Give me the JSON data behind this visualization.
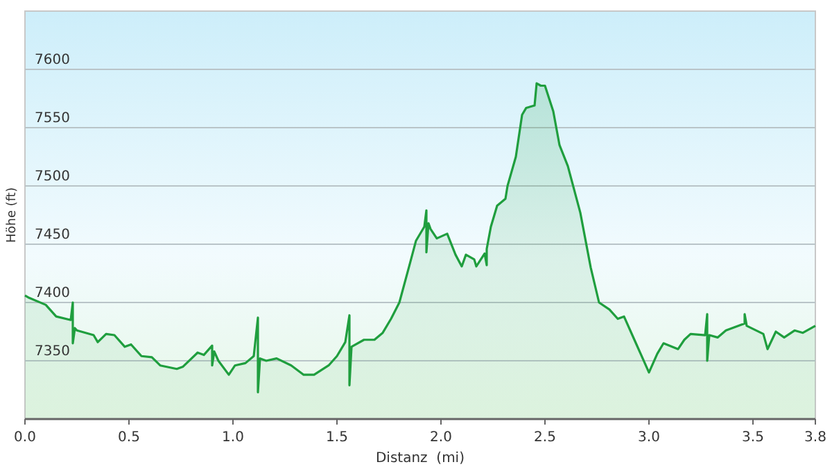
{
  "chart_data": {
    "type": "area",
    "xlabel": "Distanz  (mi)",
    "ylabel": "Höhe (ft)",
    "xlim": [
      0,
      3.8
    ],
    "ylim": [
      7300,
      7650
    ],
    "xticks": [
      {
        "value": 0,
        "label": "0.0"
      },
      {
        "value": 0.5,
        "label": "0.5"
      },
      {
        "value": 1,
        "label": "1.0"
      },
      {
        "value": 1.5,
        "label": "1.5"
      },
      {
        "value": 2,
        "label": "2.0"
      },
      {
        "value": 2.5,
        "label": "2.5"
      },
      {
        "value": 3,
        "label": "3.0"
      },
      {
        "value": 3.5,
        "label": "3.5"
      },
      {
        "value": 3.8,
        "label": "3.8"
      }
    ],
    "yticks": [
      7350,
      7400,
      7450,
      7500,
      7550,
      7600
    ],
    "grid": "y",
    "marker": "none",
    "line_style": "solid",
    "series": [
      {
        "color": "#1f9e3e",
        "x": [
          0,
          0.02,
          0.1,
          0.15,
          0.22,
          0.23,
          0.23,
          0.24,
          0.25,
          0.33,
          0.35,
          0.39,
          0.43,
          0.48,
          0.51,
          0.56,
          0.61,
          0.65,
          0.73,
          0.76,
          0.83,
          0.86,
          0.9,
          0.9,
          0.91,
          0.93,
          0.98,
          1.01,
          1.06,
          1.1,
          1.12,
          1.12,
          1.13,
          1.16,
          1.21,
          1.28,
          1.34,
          1.39,
          1.46,
          1.5,
          1.54,
          1.56,
          1.56,
          1.57,
          1.58,
          1.63,
          1.68,
          1.72,
          1.76,
          1.8,
          1.85,
          1.88,
          1.92,
          1.93,
          1.93,
          1.94,
          1.95,
          1.98,
          2.03,
          2.07,
          2.1,
          2.12,
          2.16,
          2.17,
          2.21,
          2.22,
          2.22,
          2.24,
          2.27,
          2.31,
          2.32,
          2.36,
          2.39,
          2.41,
          2.45,
          2.46,
          2.48,
          2.5,
          2.54,
          2.57,
          2.61,
          2.67,
          2.72,
          2.76,
          2.81,
          2.85,
          2.88,
          2.94,
          3,
          3.04,
          3.07,
          3.14,
          3.17,
          3.2,
          3.27,
          3.28,
          3.28,
          3.29,
          3.33,
          3.37,
          3.46,
          3.46,
          3.47,
          3.55,
          3.57,
          3.61,
          3.65,
          3.7,
          3.74,
          3.8
        ],
        "values": [
          7406,
          7404,
          7398,
          7388,
          7385,
          7400,
          7365,
          7378,
          7376,
          7372,
          7366,
          7373,
          7372,
          7362,
          7364,
          7354,
          7353,
          7346,
          7343,
          7345,
          7357,
          7355,
          7363,
          7346,
          7358,
          7350,
          7338,
          7346,
          7348,
          7354,
          7387,
          7323,
          7352,
          7350,
          7352,
          7346,
          7338,
          7338,
          7346,
          7354,
          7366,
          7389,
          7329,
          7362,
          7363,
          7368,
          7368,
          7374,
          7386,
          7400,
          7433,
          7453,
          7465,
          7479,
          7443,
          7468,
          7463,
          7455,
          7459,
          7441,
          7431,
          7441,
          7437,
          7431,
          7442,
          7432,
          7446,
          7465,
          7483,
          7489,
          7500,
          7525,
          7561,
          7567,
          7569,
          7588,
          7586,
          7586,
          7564,
          7535,
          7517,
          7477,
          7430,
          7400,
          7394,
          7386,
          7388,
          7364,
          7340,
          7356,
          7365,
          7360,
          7368,
          7373,
          7372,
          7390,
          7350,
          7372,
          7370,
          7376,
          7382,
          7390,
          7380,
          7373,
          7360,
          7375,
          7370,
          7376,
          7374,
          7380
        ]
      }
    ]
  }
}
